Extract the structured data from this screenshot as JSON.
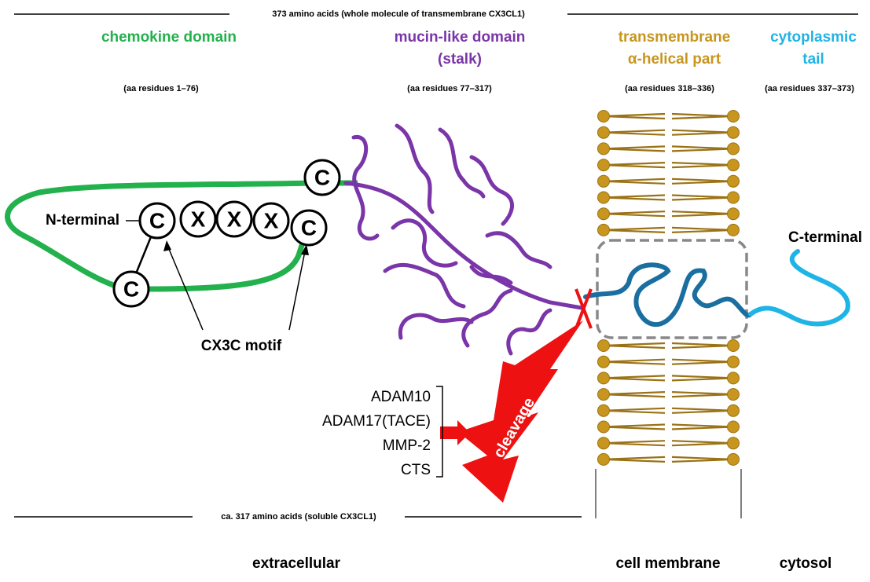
{
  "header": {
    "span": "373 amino acids (whole molecule of transmembrane  CX3CL1)"
  },
  "domains": [
    {
      "title": [
        "chemokine domain"
      ],
      "range": "(aa  residues 1–76)"
    },
    {
      "title": [
        "mucin-like domain",
        "(stalk)"
      ],
      "range": "(aa  residues 77–317)"
    },
    {
      "title": [
        "transmembrane",
        "α-helical part"
      ],
      "range": "(aa  residues 318–336)"
    },
    {
      "title": [
        "cytoplasmic",
        "tail"
      ],
      "range": "(aa  residues 337–373)"
    }
  ],
  "motif": {
    "circles": [
      "C",
      "X",
      "X",
      "X",
      "C",
      "C",
      "C"
    ],
    "label": "CX3C motif"
  },
  "labels": {
    "n_terminal": "N-terminal",
    "c_terminal": "C-terminal",
    "cleavage": "cleavage"
  },
  "enzymes": [
    "ADAM10",
    "ADAM17(TACE)",
    "MMP-2",
    "CTS"
  ],
  "footer": {
    "span": "ca. 317 amino acids (soluble CX3CL1)"
  },
  "regions": [
    "extracellular",
    "cell membrane",
    "cytosol"
  ]
}
